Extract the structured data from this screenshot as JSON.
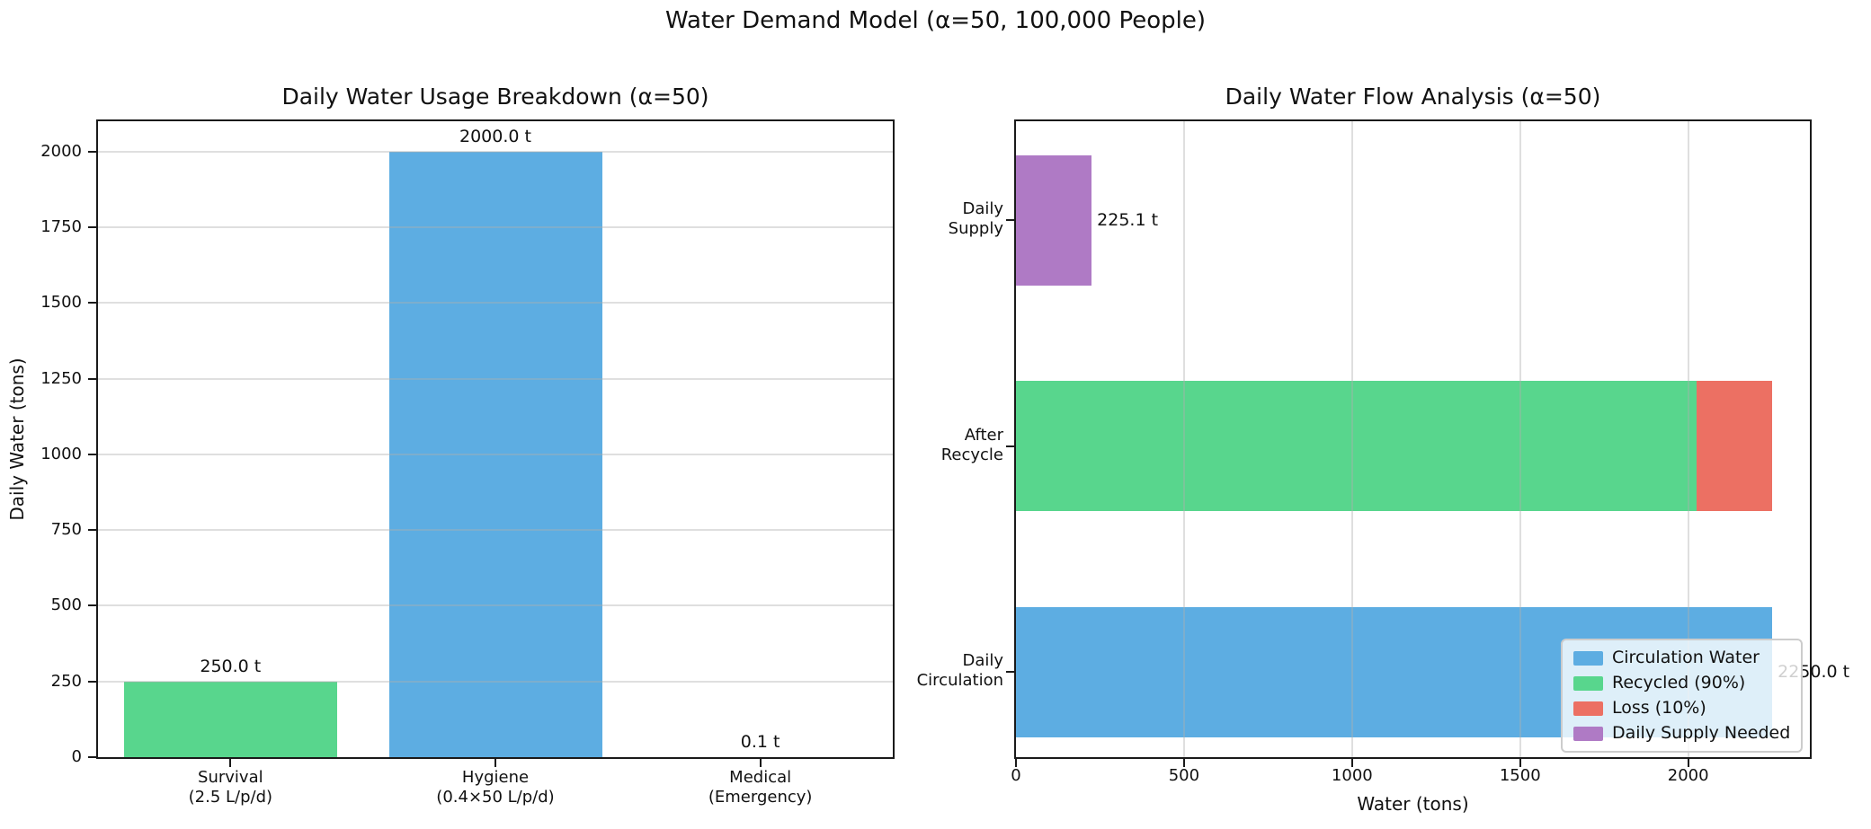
{
  "figure_title": "Water Demand Model (α=50, 100,000 People)",
  "chart_data": [
    {
      "type": "bar",
      "title": "Daily Water Usage Breakdown (α=50)",
      "ylabel": "Daily Water (tons)",
      "categories": [
        "Survival\n(2.5 L/p/d)",
        "Hygiene\n(0.4×50 L/p/d)",
        "Medical\n(Emergency)"
      ],
      "values": [
        250.0,
        2000.0,
        0.1
      ],
      "bar_labels": [
        "250.0 t",
        "2000.0 t",
        "0.1 t"
      ],
      "bar_colors": [
        "#58D68D",
        "#5DADE2",
        "#EC7063"
      ],
      "ylim": [
        0,
        2100
      ],
      "yticks": [
        0,
        250,
        500,
        750,
        1000,
        1250,
        1500,
        1750,
        2000
      ],
      "grid": "horizontal"
    },
    {
      "type": "barh_stacked",
      "title": "Daily Water Flow Analysis (α=50)",
      "xlabel": "Water (tons)",
      "rows": [
        {
          "category": "Daily\nSupply",
          "segments": [
            {
              "name": "Daily Supply Needed",
              "value": 225.1,
              "color": "#AF7AC5"
            }
          ],
          "value_label": "225.1 t"
        },
        {
          "category": "After\nRecycle",
          "segments": [
            {
              "name": "Recycled (90%)",
              "value": 2025.0,
              "color": "#58D68D"
            },
            {
              "name": "Loss (10%)",
              "value": 225.0,
              "color": "#EC7063"
            }
          ],
          "value_label": ""
        },
        {
          "category": "Daily\nCirculation",
          "segments": [
            {
              "name": "Circulation Water",
              "value": 2250.0,
              "color": "#5DADE2"
            }
          ],
          "value_label": "2250.0 t"
        }
      ],
      "xlim": [
        0,
        2362
      ],
      "xticks": [
        0,
        500,
        1000,
        1500,
        2000
      ],
      "grid": "vertical",
      "legend": {
        "items": [
          {
            "label": "Circulation Water",
            "color": "#5DADE2"
          },
          {
            "label": "Recycled (90%)",
            "color": "#58D68D"
          },
          {
            "label": "Loss (10%)",
            "color": "#EC7063"
          },
          {
            "label": "Daily Supply Needed",
            "color": "#AF7AC5"
          }
        ]
      }
    }
  ]
}
